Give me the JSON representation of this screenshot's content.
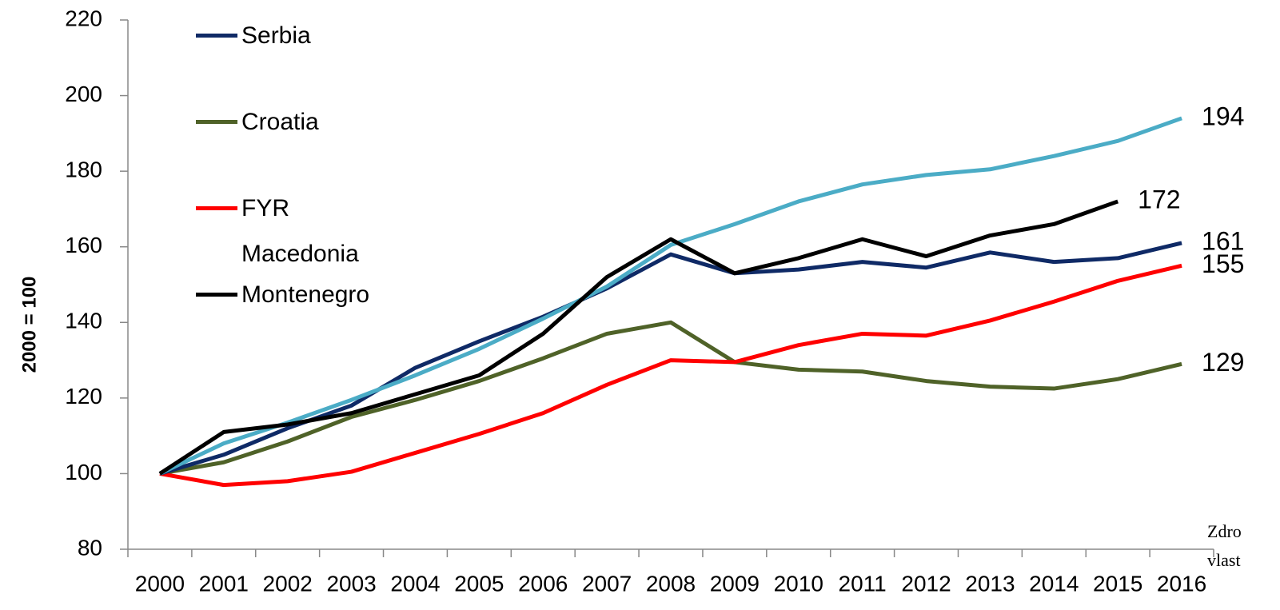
{
  "chart_data": {
    "type": "line",
    "ylabel": "2000 = 100",
    "categories": [
      "2000",
      "2001",
      "2002",
      "2003",
      "2004",
      "2005",
      "2006",
      "2007",
      "2008",
      "2009",
      "2010",
      "2011",
      "2012",
      "2013",
      "2014",
      "2015",
      "2016"
    ],
    "series": [
      {
        "name": "Croatia",
        "color": "#4f6228",
        "values": [
          100,
          103,
          108.5,
          115,
          119.5,
          124.5,
          130.5,
          137,
          140,
          129.5,
          127.5,
          127,
          124.5,
          123,
          122.5,
          125,
          129
        ]
      },
      {
        "name": "FYR Macedonia",
        "color": "#ff0000",
        "values": [
          100,
          97,
          98,
          100.5,
          105.5,
          110.5,
          116,
          123.5,
          130,
          129.5,
          134,
          137,
          136.5,
          140.5,
          145.5,
          151,
          155
        ]
      },
      {
        "name": "Serbia",
        "color": "#0f2a66",
        "values": [
          100,
          105,
          112,
          118,
          128,
          135,
          141.5,
          149,
          158,
          153,
          154,
          156,
          154.5,
          158.5,
          156,
          157,
          161
        ]
      },
      {
        "color": "#4bacc6",
        "values": [
          100,
          108,
          113.5,
          119.5,
          126,
          133,
          141,
          149.5,
          160.5,
          166,
          172,
          176.5,
          179,
          180.5,
          184,
          188,
          194
        ]
      },
      {
        "name": "Montenegro",
        "color": "#000000",
        "values": [
          100,
          111,
          113,
          116,
          121,
          126,
          137,
          152,
          162,
          153,
          157,
          162,
          157.5,
          163,
          166,
          172,
          null
        ]
      }
    ],
    "legend_order": [
      2,
      0,
      1,
      4
    ],
    "ylim": [
      80,
      220
    ],
    "yticks": [
      80,
      100,
      120,
      140,
      160,
      180,
      200,
      220
    ],
    "annotation": [
      "Zdro",
      "vlast"
    ]
  }
}
